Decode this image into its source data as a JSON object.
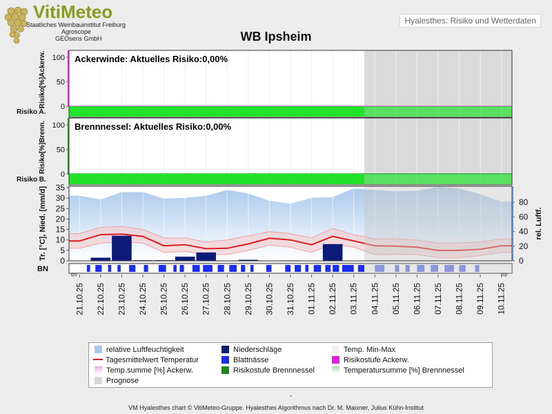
{
  "header": {
    "logo_title": "VitiMeteo",
    "logo_lines": [
      "Staatliches Weinbauinstitut Freiburg",
      "Agroscope",
      "GEOsens GmbH"
    ],
    "top_right_label": "Hyalesthes: Risiko und Wetterdaten"
  },
  "chart_title": "WB Ipsheim",
  "footer": {
    "dash": "-",
    "text": "VM Hyalesthes chart © VitiMeteo-Gruppe. Hyalesthes Algorithmus nach Dr. M. Maixner, Julius Kühn-Institut"
  },
  "colors": {
    "risk_bar": "#22e22a",
    "humidity": "#a9c9ec",
    "temp_line": "#dd1c1c",
    "temp_band": "#f6c6c6",
    "precip": "#0c1a78",
    "leaf_wet": "#1b2ef0",
    "prognose": "#d8d8d8",
    "risk_ackerw": "#e020e0",
    "risk_brennnessel": "#1a8a1a"
  },
  "chart_data": [
    {
      "type": "line",
      "panel": "ackerwinde",
      "title": "Ackerwinde: Aktuelles Risiko:0,00%",
      "ylabel": "Risiko[%]Ackerw.",
      "row_label": "Risiko A.",
      "yticks": [
        "100",
        "50",
        "0"
      ],
      "ylim": [
        0,
        100
      ],
      "values": [
        0,
        0,
        0,
        0,
        0,
        0,
        0,
        0,
        0,
        0,
        0,
        0,
        0,
        0,
        0,
        0,
        0,
        0,
        0,
        0,
        0
      ],
      "risk_level": "low"
    },
    {
      "type": "line",
      "panel": "brennnessel",
      "title": "Brennnessel: Aktuelles Risiko:0,00%",
      "ylabel": "Risiko[%]Brenn.",
      "row_label": "Risiko B.",
      "yticks": [
        "100",
        "50",
        "0"
      ],
      "ylim": [
        0,
        100
      ],
      "values": [
        0,
        0,
        0,
        0,
        0,
        0,
        0,
        0,
        0,
        0,
        0,
        0,
        0,
        0,
        0,
        0,
        0,
        0,
        0,
        0,
        0
      ],
      "risk_level": "low"
    },
    {
      "type": "area",
      "panel": "weather",
      "ylabel_left": "Tr. [°C], Nied. [mm/d]",
      "ylabel_right": "rel. Luftf.",
      "row_label": "BN",
      "yticks_left": [
        "35",
        "30",
        "25",
        "20",
        "15",
        "10",
        "5",
        "0"
      ],
      "yticks_right": [
        "80",
        "60",
        "40",
        "20",
        "0"
      ],
      "ylim_left": [
        0,
        35
      ],
      "ylim_right": [
        0,
        100
      ],
      "categories": [
        "21.10.25",
        "22.10.25",
        "23.10.25",
        "24.10.25",
        "25.10.25",
        "26.10.25",
        "27.10.25",
        "28.10.25",
        "29.10.25",
        "30.10.25",
        "31.10.25",
        "01.11.25",
        "02.11.25",
        "03.11.25",
        "04.11.25",
        "05.11.25",
        "06.11.25",
        "07.11.25",
        "08.11.25",
        "09.11.25",
        "10.11.25"
      ],
      "prognose_from": "04.11.25",
      "series": [
        {
          "name": "relative Luftfeuchtigkeit",
          "values": [
            89,
            84,
            94,
            94,
            85,
            86,
            89,
            97,
            92,
            82,
            78,
            86,
            87,
            99,
            97,
            95,
            96,
            101,
            99,
            91,
            81
          ]
        },
        {
          "name": "Tagesmittelwert Temperatur",
          "values": [
            9.5,
            12.5,
            12.8,
            11.7,
            7.2,
            7.7,
            5.8,
            6.0,
            8.1,
            10.8,
            10.0,
            7.7,
            11.7,
            9.5,
            7.2,
            7.0,
            6.5,
            5.0,
            5.0,
            5.5,
            7.2
          ]
        },
        {
          "name": "Temp. Min-Max",
          "min": [
            6.0,
            8.5,
            9.0,
            8.5,
            4.0,
            4.5,
            3.0,
            3.0,
            5.0,
            7.5,
            6.5,
            4.0,
            8.0,
            6.5,
            3.0,
            3.0,
            3.0,
            1.5,
            1.5,
            2.5,
            4.0
          ],
          "max": [
            13.0,
            16.0,
            16.5,
            15.0,
            11.0,
            11.0,
            9.0,
            10.0,
            12.0,
            14.0,
            13.0,
            11.0,
            15.5,
            12.5,
            10.5,
            10.5,
            10.0,
            8.5,
            8.5,
            9.0,
            10.5
          ]
        },
        {
          "name": "Niederschläge",
          "values": [
            0,
            1.5,
            12,
            0.3,
            0.3,
            2.0,
            4.0,
            0,
            0.5,
            0,
            0.2,
            0,
            8.0,
            0,
            0,
            0,
            0,
            0,
            0,
            0,
            0
          ]
        }
      ],
      "leaf_wetness_blocks": [
        [
          0.85,
          1.0
        ],
        [
          1.25,
          1.55
        ],
        [
          1.85,
          2.0
        ],
        [
          2.3,
          2.45
        ],
        [
          2.85,
          3.15
        ],
        [
          3.55,
          3.75
        ],
        [
          4.25,
          4.6
        ],
        [
          4.95,
          5.1
        ],
        [
          5.25,
          5.45
        ],
        [
          5.85,
          6.2
        ],
        [
          6.35,
          6.8
        ],
        [
          7.05,
          7.35
        ],
        [
          7.6,
          7.95
        ],
        [
          8.15,
          8.35
        ],
        [
          8.6,
          8.75
        ],
        [
          9.35,
          9.6
        ],
        [
          10.25,
          10.5
        ],
        [
          10.7,
          11.0
        ],
        [
          11.2,
          11.35
        ],
        [
          11.6,
          11.95
        ],
        [
          12.15,
          12.4
        ],
        [
          12.5,
          12.8
        ],
        [
          12.95,
          13.5
        ],
        [
          13.7,
          14.0
        ],
        [
          14.5,
          14.95
        ],
        [
          15.45,
          15.65
        ],
        [
          15.95,
          16.15
        ],
        [
          16.5,
          16.85
        ],
        [
          17.15,
          17.5
        ],
        [
          17.8,
          18.25
        ],
        [
          18.5,
          18.8
        ],
        [
          19.25,
          19.45
        ]
      ]
    }
  ],
  "legend": [
    {
      "label": "relative Luftfeuchtigkeit",
      "type": "swatch",
      "color": "#a9c9ec"
    },
    {
      "label": "Niederschläge",
      "type": "swatch",
      "color": "#0c1a78"
    },
    {
      "label": "Temp. Min-Max",
      "type": "swatch",
      "color": "#f6eeee"
    },
    {
      "label": "Tagesmittelwert Temperatur",
      "type": "line",
      "color": "#dd1c1c"
    },
    {
      "label": "Blattnässe",
      "type": "swatch",
      "color": "#1b2ef0"
    },
    {
      "label": "Risikostufe Ackerw.",
      "type": "swatch",
      "color": "#e020e0"
    },
    {
      "label": "Temp.summe [%] Ackerw.",
      "type": "swatch",
      "color": "#f0a8f0"
    },
    {
      "label": "Risikostufe Brennnessel",
      "type": "swatch",
      "color": "#1a8a1a"
    },
    {
      "label": "Temperatursumme [%] Brennnessel",
      "type": "swatch",
      "color": "#a8dca8"
    },
    {
      "label": "Prognose",
      "type": "swatch",
      "color": "#d8d8d8"
    }
  ]
}
